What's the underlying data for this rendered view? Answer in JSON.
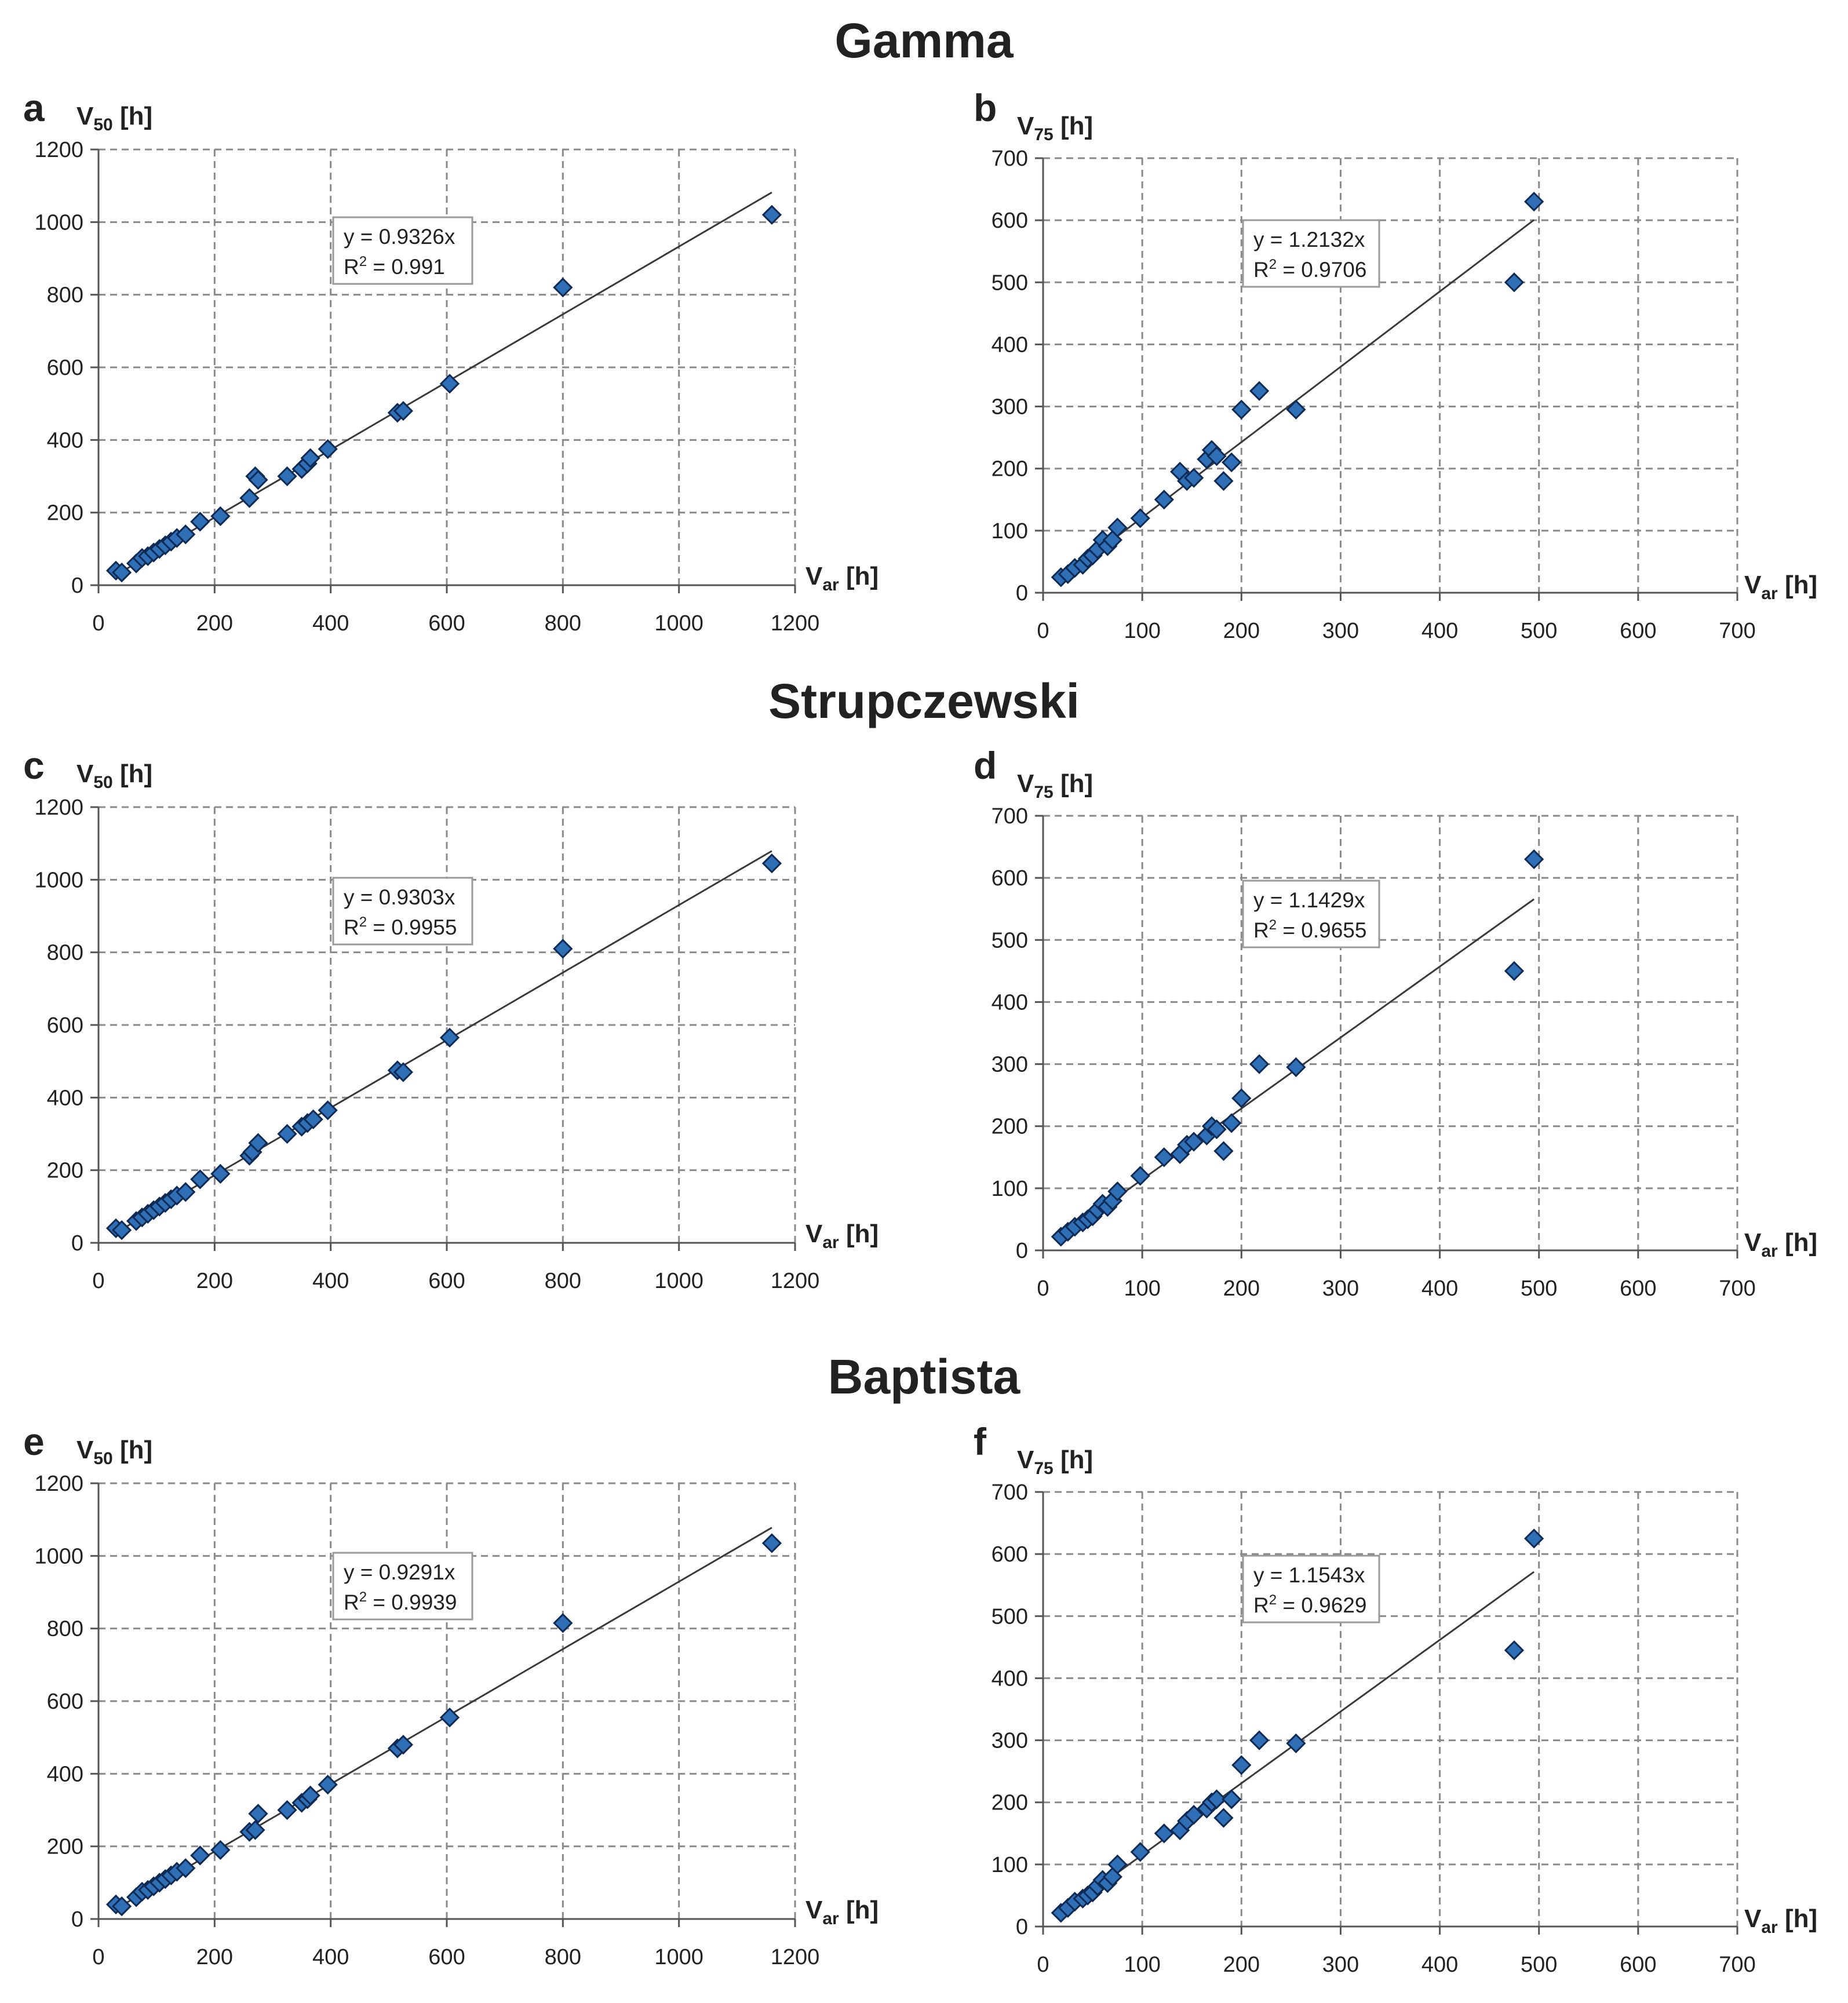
{
  "sections": [
    {
      "title": "Gamma"
    },
    {
      "title": "Strupczewski"
    },
    {
      "title": "Baptista"
    }
  ],
  "colors": {
    "marker_fill": "#2f6fb5",
    "marker_stroke": "#0e2a55",
    "trendline": "#3a3a3a",
    "grid": "#8a8a8a",
    "text": "#222222"
  },
  "chart_data": [
    {
      "panel": "a",
      "type": "scatter",
      "method": "Gamma",
      "ylabel_base": "V",
      "ylabel_sub": "50",
      "ylabel_unit": "[h]",
      "xlabel_base": "V",
      "xlabel_sub": "ar",
      "xlabel_unit": "[h]",
      "xlim": [
        0,
        1200
      ],
      "ylim": [
        0,
        1200
      ],
      "xticks": [
        0,
        200,
        400,
        600,
        800,
        1000,
        1200
      ],
      "yticks": [
        0,
        200,
        400,
        600,
        800,
        1000,
        1200
      ],
      "grid": true,
      "trendline": {
        "slope": 0.9326,
        "x_range": [
          30,
          1160
        ],
        "equation": "y = 0.9326x",
        "r2_prefix": "R",
        "r2_sup": "2",
        "r2_value": " = 0.991"
      },
      "x": [
        30,
        40,
        65,
        75,
        85,
        95,
        105,
        115,
        125,
        135,
        150,
        175,
        210,
        260,
        270,
        275,
        325,
        350,
        360,
        365,
        395,
        515,
        525,
        605,
        800,
        1160
      ],
      "y": [
        40,
        35,
        60,
        75,
        80,
        90,
        100,
        110,
        120,
        130,
        140,
        175,
        190,
        240,
        300,
        290,
        300,
        320,
        335,
        350,
        375,
        475,
        480,
        555,
        820,
        1020
      ]
    },
    {
      "panel": "b",
      "type": "scatter",
      "method": "Gamma",
      "ylabel_base": "V",
      "ylabel_sub": "75",
      "ylabel_unit": "[h]",
      "xlabel_base": "V",
      "xlabel_sub": "ar",
      "xlabel_unit": "[h]",
      "xlim": [
        0,
        700
      ],
      "ylim": [
        0,
        700
      ],
      "xticks": [
        0,
        100,
        200,
        300,
        400,
        500,
        600,
        700
      ],
      "yticks": [
        0,
        100,
        200,
        300,
        400,
        500,
        600,
        700
      ],
      "grid": true,
      "trendline": {
        "slope": 1.2132,
        "x_range": [
          15,
          495
        ],
        "equation": "y = 1.2132x",
        "r2_prefix": "R",
        "r2_sup": "2",
        "r2_value": " = 0.9706"
      },
      "x": [
        18,
        25,
        32,
        40,
        45,
        50,
        55,
        60,
        65,
        70,
        75,
        98,
        122,
        138,
        145,
        152,
        165,
        170,
        175,
        182,
        190,
        200,
        218,
        255,
        475,
        495
      ],
      "y": [
        25,
        30,
        40,
        45,
        55,
        60,
        70,
        85,
        75,
        85,
        105,
        120,
        150,
        195,
        180,
        185,
        215,
        230,
        220,
        180,
        210,
        295,
        325,
        295,
        500,
        630
      ]
    },
    {
      "panel": "c",
      "type": "scatter",
      "method": "Strupczewski",
      "ylabel_base": "V",
      "ylabel_sub": "50",
      "ylabel_unit": "[h]",
      "xlabel_base": "V",
      "xlabel_sub": "ar",
      "xlabel_unit": "[h]",
      "xlim": [
        0,
        1200
      ],
      "ylim": [
        0,
        1200
      ],
      "xticks": [
        0,
        200,
        400,
        600,
        800,
        1000,
        1200
      ],
      "yticks": [
        0,
        200,
        400,
        600,
        800,
        1000,
        1200
      ],
      "grid": true,
      "trendline": {
        "slope": 0.9303,
        "x_range": [
          30,
          1160
        ],
        "equation": "y = 0.9303x",
        "r2_prefix": "R",
        "r2_sup": "2",
        "r2_value": " = 0.9955"
      },
      "x": [
        30,
        40,
        65,
        75,
        85,
        95,
        105,
        115,
        125,
        135,
        150,
        175,
        210,
        260,
        265,
        275,
        325,
        350,
        360,
        370,
        395,
        515,
        525,
        605,
        800,
        1160
      ],
      "y": [
        40,
        35,
        60,
        70,
        80,
        90,
        100,
        110,
        120,
        130,
        140,
        175,
        190,
        240,
        250,
        275,
        300,
        320,
        330,
        340,
        365,
        475,
        470,
        565,
        810,
        1045
      ]
    },
    {
      "panel": "d",
      "type": "scatter",
      "method": "Strupczewski",
      "ylabel_base": "V",
      "ylabel_sub": "75",
      "ylabel_unit": "[h]",
      "xlabel_base": "V",
      "xlabel_sub": "ar",
      "xlabel_unit": "[h]",
      "xlim": [
        0,
        700
      ],
      "ylim": [
        0,
        700
      ],
      "xticks": [
        0,
        100,
        200,
        300,
        400,
        500,
        600,
        700
      ],
      "yticks": [
        0,
        100,
        200,
        300,
        400,
        500,
        600,
        700
      ],
      "grid": true,
      "trendline": {
        "slope": 1.1429,
        "x_range": [
          15,
          495
        ],
        "equation": "y = 1.1429x",
        "r2_prefix": "R",
        "r2_sup": "2",
        "r2_value": " = 0.9655"
      },
      "x": [
        18,
        25,
        32,
        40,
        45,
        50,
        55,
        60,
        65,
        70,
        75,
        98,
        122,
        138,
        145,
        152,
        165,
        170,
        175,
        182,
        190,
        200,
        218,
        255,
        475,
        495
      ],
      "y": [
        22,
        30,
        38,
        45,
        50,
        55,
        65,
        75,
        70,
        80,
        95,
        120,
        150,
        155,
        170,
        175,
        185,
        200,
        195,
        160,
        205,
        245,
        300,
        295,
        450,
        630
      ]
    },
    {
      "panel": "e",
      "type": "scatter",
      "method": "Baptista",
      "ylabel_base": "V",
      "ylabel_sub": "50",
      "ylabel_unit": "[h]",
      "xlabel_base": "V",
      "xlabel_sub": "ar",
      "xlabel_unit": "[h]",
      "xlim": [
        0,
        1200
      ],
      "ylim": [
        0,
        1200
      ],
      "xticks": [
        0,
        200,
        400,
        600,
        800,
        1000,
        1200
      ],
      "yticks": [
        0,
        200,
        400,
        600,
        800,
        1000,
        1200
      ],
      "grid": true,
      "trendline": {
        "slope": 0.9291,
        "x_range": [
          30,
          1160
        ],
        "equation": "y = 0.9291x",
        "r2_prefix": "R",
        "r2_sup": "2",
        "r2_value": " = 0.9939"
      },
      "x": [
        30,
        40,
        65,
        75,
        85,
        95,
        105,
        115,
        125,
        135,
        150,
        175,
        210,
        260,
        270,
        275,
        325,
        350,
        360,
        365,
        395,
        515,
        525,
        605,
        800,
        1160
      ],
      "y": [
        40,
        35,
        60,
        75,
        80,
        90,
        100,
        110,
        120,
        130,
        140,
        175,
        190,
        240,
        245,
        290,
        300,
        320,
        330,
        340,
        370,
        470,
        480,
        555,
        815,
        1035
      ]
    },
    {
      "panel": "f",
      "type": "scatter",
      "method": "Baptista",
      "ylabel_base": "V",
      "ylabel_sub": "75",
      "ylabel_unit": "[h]",
      "xlabel_base": "V",
      "xlabel_sub": "ar",
      "xlabel_unit": "[h]",
      "xlim": [
        0,
        700
      ],
      "ylim": [
        0,
        700
      ],
      "xticks": [
        0,
        100,
        200,
        300,
        400,
        500,
        600,
        700
      ],
      "yticks": [
        0,
        100,
        200,
        300,
        400,
        500,
        600,
        700
      ],
      "grid": true,
      "trendline": {
        "slope": 1.1543,
        "x_range": [
          15,
          495
        ],
        "equation": "y = 1.1543x",
        "r2_prefix": "R",
        "r2_sup": "2",
        "r2_value": " = 0.9629"
      },
      "x": [
        18,
        25,
        32,
        40,
        45,
        50,
        55,
        60,
        65,
        70,
        75,
        98,
        122,
        138,
        145,
        152,
        165,
        170,
        175,
        182,
        190,
        200,
        218,
        255,
        475,
        495
      ],
      "y": [
        22,
        30,
        40,
        45,
        50,
        55,
        65,
        75,
        70,
        80,
        100,
        120,
        150,
        155,
        170,
        180,
        190,
        200,
        205,
        175,
        205,
        260,
        300,
        295,
        445,
        625
      ]
    }
  ]
}
